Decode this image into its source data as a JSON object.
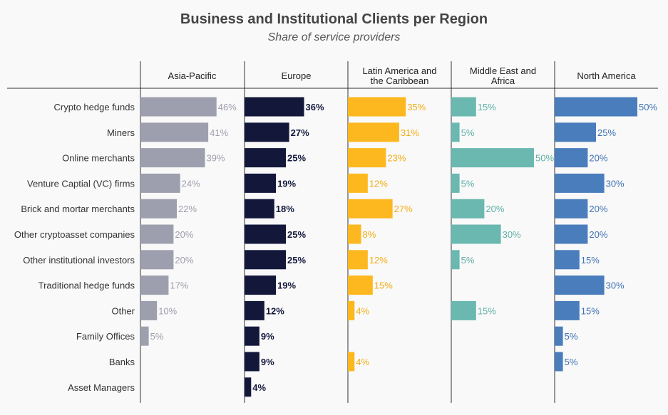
{
  "chart_data": {
    "type": "bar",
    "orientation": "horizontal",
    "layout": "small-multiples",
    "title": "Business and Institutional Clients per Region",
    "subtitle": "Share of service providers",
    "categories": [
      "Crypto hedge funds",
      "Miners",
      "Online merchants",
      "Venture Captial (VC) firms",
      "Brick and mortar merchants",
      "Other cryptoasset companies",
      "Other institutional investors",
      "Traditional hedge funds",
      "Other",
      "Family Offices",
      "Banks",
      "Asset Managers"
    ],
    "xlim": [
      0,
      50
    ],
    "unit": "%",
    "series": [
      {
        "name": "Asia-Pacific",
        "color": "#9e9fae",
        "label_color": "#9e9fae",
        "values": [
          46,
          41,
          39,
          24,
          22,
          20,
          20,
          17,
          10,
          5,
          null,
          null
        ]
      },
      {
        "name": "Europe",
        "color": "#13183b",
        "label_color": "#13183b",
        "values": [
          36,
          27,
          25,
          19,
          18,
          25,
          25,
          19,
          12,
          9,
          9,
          4
        ]
      },
      {
        "name": "Latin America and the Caribbean",
        "color": "#fcb81e",
        "label_color": "#f3ad14",
        "values": [
          35,
          31,
          23,
          12,
          27,
          8,
          12,
          15,
          4,
          null,
          4,
          null
        ]
      },
      {
        "name": "Middle East and Africa",
        "color": "#6ab8af",
        "label_color": "#5fb0a6",
        "values": [
          15,
          5,
          50,
          5,
          20,
          30,
          5,
          null,
          15,
          null,
          null,
          null
        ]
      },
      {
        "name": "North America",
        "color": "#4a7dbb",
        "label_color": "#3e72b2",
        "values": [
          50,
          25,
          20,
          30,
          20,
          20,
          15,
          30,
          15,
          5,
          5,
          null
        ]
      }
    ]
  }
}
